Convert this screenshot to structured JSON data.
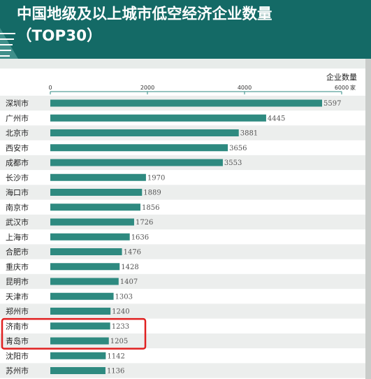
{
  "header": {
    "title": "中国地级及以上城市低空经济企业数量\n（TOP30）"
  },
  "highlight_color": "#e02020",
  "bar_color": "#2e8a80",
  "chart_data": {
    "type": "bar",
    "orientation": "horizontal",
    "title": "中国地级及以上城市低空经济企业数量（TOP30）",
    "ylabel": "企业数量",
    "unit": "家",
    "xlim": [
      0,
      6000
    ],
    "ticks": [
      0,
      2000,
      4000,
      6000
    ],
    "grid": false,
    "legend": "none",
    "categories": [
      "深圳市",
      "广州市",
      "北京市",
      "西安市",
      "成都市",
      "长沙市",
      "海口市",
      "南京市",
      "武汉市",
      "上海市",
      "合肥市",
      "重庆市",
      "昆明市",
      "天津市",
      "郑州市",
      "济南市",
      "青岛市",
      "沈阳市",
      "苏州市"
    ],
    "values": [
      5597,
      4445,
      3881,
      3656,
      3553,
      1970,
      1889,
      1856,
      1726,
      1636,
      1476,
      1428,
      1407,
      1303,
      1240,
      1233,
      1205,
      1142,
      1136
    ],
    "highlighted": [
      "济南市",
      "青岛市"
    ]
  }
}
